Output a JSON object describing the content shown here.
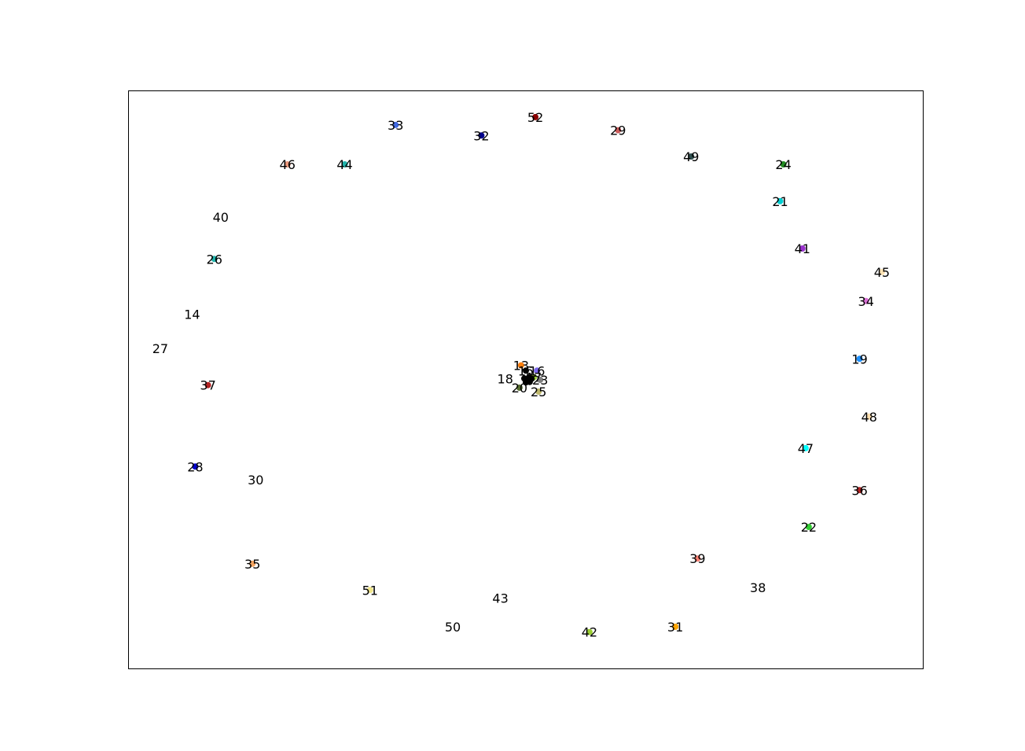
{
  "chart_data": {
    "type": "scatter",
    "title": "",
    "xlabel": "",
    "ylabel": "",
    "axes_visible": false,
    "grid": false,
    "legend": "none",
    "xlim": [
      -1.25,
      1.25
    ],
    "ylim": [
      -1.1,
      1.1
    ],
    "points": [
      {
        "label": "13",
        "x": -0.015,
        "y": 0.055,
        "color": "#ff7f0e"
      },
      {
        "label": "14",
        "x": -1.05,
        "y": 0.25,
        "color": "#ffffff"
      },
      {
        "label": "15",
        "x": 0.0,
        "y": 0.035,
        "color": "#000000"
      },
      {
        "label": "16",
        "x": 0.035,
        "y": 0.035,
        "color": "#7b68ee"
      },
      {
        "label": "17",
        "x": 0.025,
        "y": 0.01,
        "color": "#9acd32"
      },
      {
        "label": "18",
        "x": -0.065,
        "y": 0.005,
        "color": "#ffffff"
      },
      {
        "label": "19",
        "x": 1.05,
        "y": 0.08,
        "color": "#1e90ff"
      },
      {
        "label": "20",
        "x": -0.02,
        "y": -0.03,
        "color": "#556b2f"
      },
      {
        "label": "21",
        "x": 0.8,
        "y": 0.68,
        "color": "#00ced1"
      },
      {
        "label": "22",
        "x": 0.89,
        "y": -0.56,
        "color": "#32cd32"
      },
      {
        "label": "23",
        "x": 0.045,
        "y": 0.0,
        "color": "#808080"
      },
      {
        "label": "24",
        "x": 0.81,
        "y": 0.82,
        "color": "#228b22"
      },
      {
        "label": "25",
        "x": 0.04,
        "y": -0.045,
        "color": "#bdb76b"
      },
      {
        "label": "26",
        "x": -0.98,
        "y": 0.46,
        "color": "#20b2aa"
      },
      {
        "label": "27",
        "x": -1.15,
        "y": 0.12,
        "color": "#ffffff"
      },
      {
        "label": "28",
        "x": -1.04,
        "y": -0.33,
        "color": "#0000cd"
      },
      {
        "label": "29",
        "x": 0.29,
        "y": 0.95,
        "color": "#cd5c5c"
      },
      {
        "label": "30",
        "x": -0.85,
        "y": -0.38,
        "color": "#ffffff"
      },
      {
        "label": "31",
        "x": 0.47,
        "y": -0.94,
        "color": "#ffa500"
      },
      {
        "label": "32",
        "x": -0.14,
        "y": 0.93,
        "color": "#00008b"
      },
      {
        "label": "33",
        "x": -0.41,
        "y": 0.97,
        "color": "#4169e1"
      },
      {
        "label": "34",
        "x": 1.07,
        "y": 0.3,
        "color": "#da70d6"
      },
      {
        "label": "35",
        "x": -0.86,
        "y": -0.7,
        "color": "#f4a460"
      },
      {
        "label": "36",
        "x": 1.05,
        "y": -0.42,
        "color": "#b22222"
      },
      {
        "label": "37",
        "x": -1.0,
        "y": -0.02,
        "color": "#b22222"
      },
      {
        "label": "38",
        "x": 0.73,
        "y": -0.79,
        "color": "#ffffff"
      },
      {
        "label": "39",
        "x": 0.54,
        "y": -0.68,
        "color": "#fa8072"
      },
      {
        "label": "40",
        "x": -0.96,
        "y": 0.62,
        "color": "#ffffff"
      },
      {
        "label": "41",
        "x": 0.87,
        "y": 0.5,
        "color": "#9932cc"
      },
      {
        "label": "42",
        "x": 0.2,
        "y": -0.96,
        "color": "#9acd32"
      },
      {
        "label": "43",
        "x": -0.08,
        "y": -0.83,
        "color": "#ffffff"
      },
      {
        "label": "44",
        "x": -0.57,
        "y": 0.82,
        "color": "#20b2aa"
      },
      {
        "label": "45",
        "x": 1.12,
        "y": 0.41,
        "color": "#ffe4b5"
      },
      {
        "label": "46",
        "x": -0.75,
        "y": 0.82,
        "color": "#e9967a"
      },
      {
        "label": "47",
        "x": 0.88,
        "y": -0.26,
        "color": "#00ffff"
      },
      {
        "label": "48",
        "x": 1.08,
        "y": -0.14,
        "color": "#ffdead"
      },
      {
        "label": "49",
        "x": 0.52,
        "y": 0.85,
        "color": "#2f4f4f"
      },
      {
        "label": "50",
        "x": -0.23,
        "y": -0.94,
        "color": "#ffffff"
      },
      {
        "label": "51",
        "x": -0.49,
        "y": -0.8,
        "color": "#f0e68c"
      },
      {
        "label": "52",
        "x": 0.03,
        "y": 1.0,
        "color": "#8b0000"
      },
      {
        "label": "",
        "x": 0.005,
        "y": 0.0,
        "color": "#000000"
      },
      {
        "label": "",
        "x": 0.01,
        "y": 0.01,
        "color": "#000000"
      },
      {
        "label": "",
        "x": -0.005,
        "y": 0.005,
        "color": "#000000"
      },
      {
        "label": "",
        "x": 0.012,
        "y": -0.008,
        "color": "#000000"
      },
      {
        "label": "",
        "x": 0.0,
        "y": -0.01,
        "color": "#000000"
      },
      {
        "label": "",
        "x": 0.018,
        "y": 0.004,
        "color": "#000000"
      }
    ]
  }
}
